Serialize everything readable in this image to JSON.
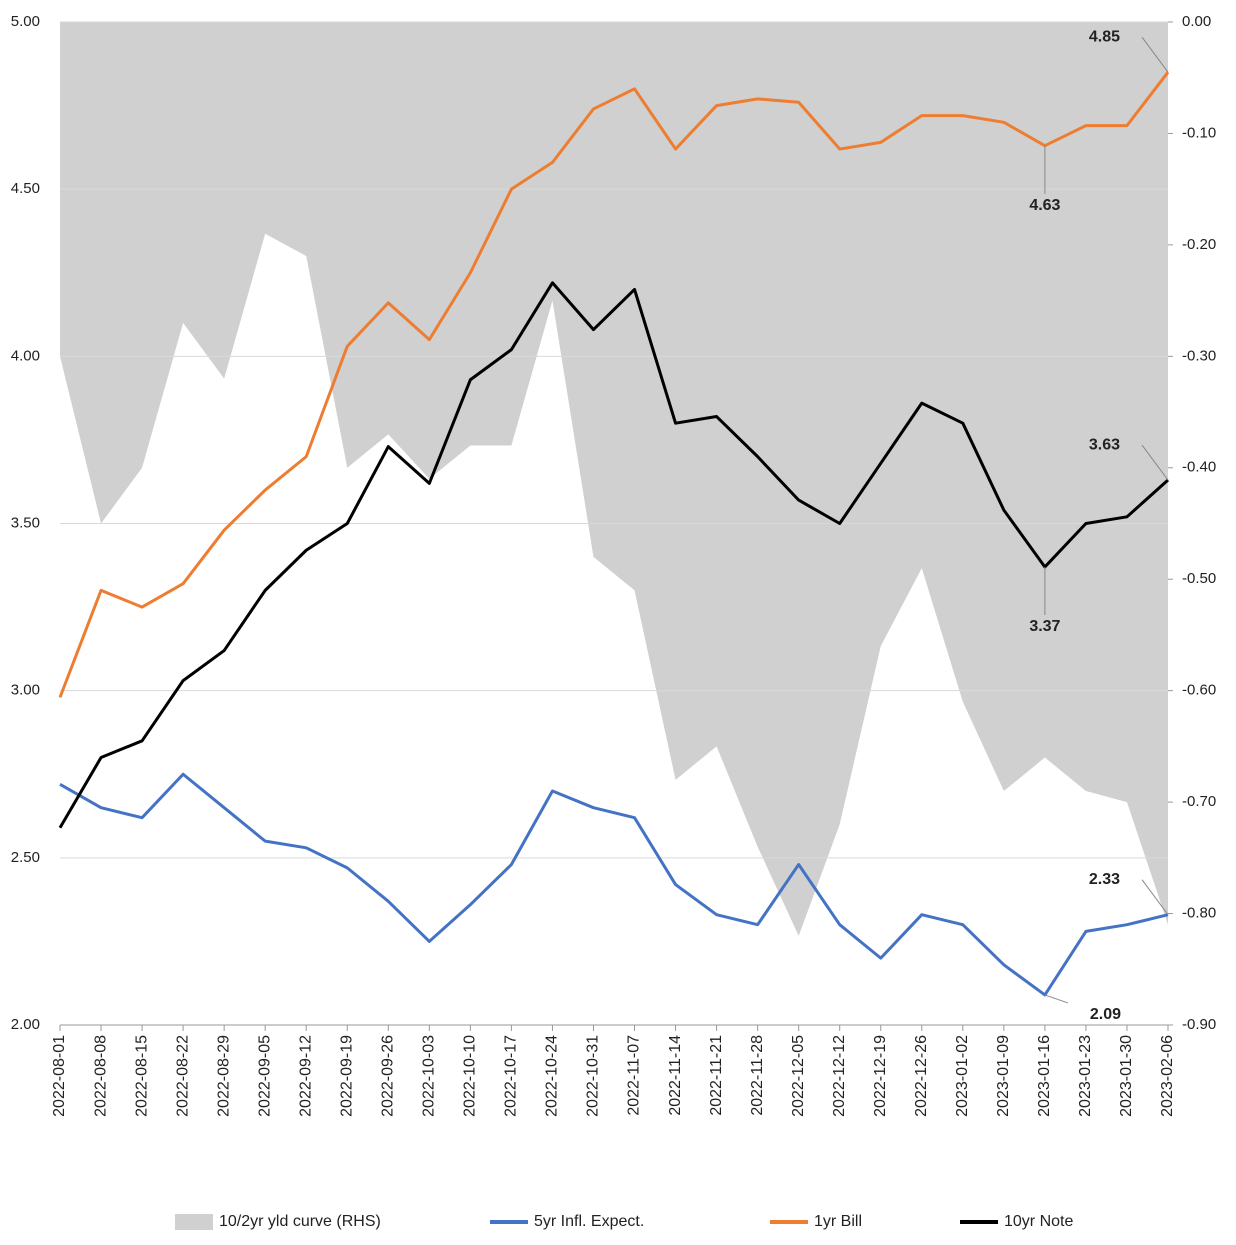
{
  "chart_data": {
    "type": "line",
    "x": [
      "2022-08-01",
      "2022-08-08",
      "2022-08-15",
      "2022-08-22",
      "2022-08-29",
      "2022-09-05",
      "2022-09-12",
      "2022-09-19",
      "2022-09-26",
      "2022-10-03",
      "2022-10-10",
      "2022-10-17",
      "2022-10-24",
      "2022-10-31",
      "2022-11-07",
      "2022-11-14",
      "2022-11-21",
      "2022-11-28",
      "2022-12-05",
      "2022-12-12",
      "2022-12-19",
      "2022-12-26",
      "2023-01-02",
      "2023-01-09",
      "2023-01-16",
      "2023-01-23",
      "2023-01-30",
      "2023-02-06"
    ],
    "ylim": [
      2,
      5
    ],
    "yticks": [
      {
        "value": 2,
        "label": "2.00"
      },
      {
        "value": 2.5,
        "label": "2.50"
      },
      {
        "value": 3,
        "label": "3.00"
      },
      {
        "value": 3.5,
        "label": "3.50"
      },
      {
        "value": 4,
        "label": "4.00"
      },
      {
        "value": 4.5,
        "label": "4.50"
      },
      {
        "value": 5,
        "label": "5.00"
      }
    ],
    "y2lim": [
      -0.9,
      0
    ],
    "y2ticks": [
      {
        "value": -0.9,
        "label": "-0.90"
      },
      {
        "value": -0.8,
        "label": "-0.80"
      },
      {
        "value": -0.7,
        "label": "-0.70"
      },
      {
        "value": -0.6,
        "label": "-0.60"
      },
      {
        "value": -0.5,
        "label": "-0.50"
      },
      {
        "value": -0.4,
        "label": "-0.40"
      },
      {
        "value": -0.3,
        "label": "-0.30"
      },
      {
        "value": -0.2,
        "label": "-0.20"
      },
      {
        "value": -0.1,
        "label": "-0.10"
      },
      {
        "value": 0,
        "label": "0.00"
      }
    ],
    "grid": true,
    "series": [
      {
        "name": "10/2yr yld curve (RHS)",
        "kind": "area",
        "axis": "y2",
        "color": "#d0d0d0",
        "values": [
          -0.3,
          -0.45,
          -0.4,
          -0.27,
          -0.32,
          -0.19,
          -0.21,
          -0.4,
          -0.37,
          -0.41,
          -0.38,
          -0.38,
          -0.25,
          -0.48,
          -0.51,
          -0.68,
          -0.65,
          -0.74,
          -0.82,
          -0.72,
          -0.56,
          -0.49,
          -0.61,
          -0.69,
          -0.66,
          -0.69,
          -0.7,
          -0.81
        ]
      },
      {
        "name": "5yr Infl. Expect.",
        "color": "#4472c4",
        "values": [
          2.72,
          2.65,
          2.62,
          2.75,
          2.65,
          2.55,
          2.53,
          2.47,
          2.37,
          2.25,
          2.36,
          2.48,
          2.7,
          2.65,
          2.62,
          2.42,
          2.33,
          2.3,
          2.48,
          2.3,
          2.2,
          2.33,
          2.3,
          2.18,
          2.09,
          2.28,
          2.3,
          2.33
        ],
        "value_labels": [
          null,
          null,
          null,
          null,
          null,
          null,
          null,
          null,
          null,
          null,
          null,
          null,
          null,
          null,
          null,
          null,
          null,
          null,
          null,
          null,
          null,
          null,
          null,
          null,
          "2.09",
          null,
          null,
          "2.33"
        ]
      },
      {
        "name": "1yr Bill",
        "color": "#ed7d31",
        "values": [
          2.98,
          3.3,
          3.25,
          3.32,
          3.48,
          3.6,
          3.7,
          4.03,
          4.16,
          4.05,
          4.25,
          4.5,
          4.58,
          4.74,
          4.8,
          4.62,
          4.75,
          4.77,
          4.76,
          4.62,
          4.64,
          4.72,
          4.72,
          4.7,
          4.63,
          4.69,
          4.69,
          4.85
        ],
        "value_labels": [
          null,
          null,
          null,
          null,
          null,
          null,
          null,
          null,
          null,
          null,
          null,
          null,
          null,
          null,
          null,
          null,
          null,
          null,
          null,
          null,
          null,
          null,
          null,
          null,
          "4.63",
          null,
          null,
          "4.85"
        ]
      },
      {
        "name": "10yr Note",
        "color": "#000000",
        "values": [
          2.59,
          2.8,
          2.85,
          3.03,
          3.12,
          3.3,
          3.42,
          3.5,
          3.73,
          3.62,
          3.93,
          4.02,
          4.22,
          4.08,
          4.2,
          3.8,
          3.82,
          3.7,
          3.57,
          3.5,
          3.68,
          3.86,
          3.8,
          3.54,
          3.37,
          3.5,
          3.52,
          3.63
        ],
        "value_labels": [
          null,
          null,
          null,
          null,
          null,
          null,
          null,
          null,
          null,
          null,
          null,
          null,
          null,
          null,
          null,
          null,
          null,
          null,
          null,
          null,
          null,
          null,
          null,
          null,
          "3.37",
          null,
          null,
          "3.63"
        ]
      }
    ]
  }
}
